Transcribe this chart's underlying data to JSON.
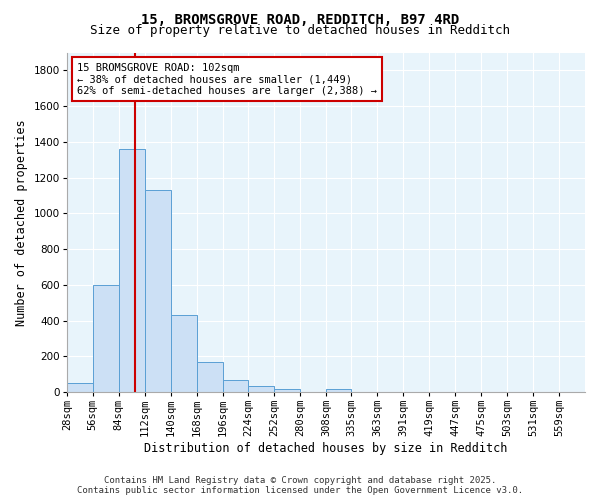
{
  "title": "15, BROMSGROVE ROAD, REDDITCH, B97 4RD",
  "subtitle": "Size of property relative to detached houses in Redditch",
  "xlabel": "Distribution of detached houses by size in Redditch",
  "ylabel": "Number of detached properties",
  "property_size": 102,
  "bin_edges": [
    28,
    56,
    84,
    112,
    140,
    168,
    196,
    224,
    252,
    280,
    308,
    335,
    363,
    391,
    419,
    447,
    475,
    503,
    531,
    559,
    587
  ],
  "bar_heights": [
    50,
    600,
    1360,
    1130,
    430,
    170,
    65,
    35,
    15,
    0,
    15,
    0,
    0,
    0,
    0,
    0,
    0,
    0,
    0,
    0
  ],
  "bar_facecolor": "#cce0f5",
  "bar_edgecolor": "#5a9fd4",
  "vline_color": "#cc0000",
  "annotation_line1": "15 BROMSGROVE ROAD: 102sqm",
  "annotation_line2": "← 38% of detached houses are smaller (1,449)",
  "annotation_line3": "62% of semi-detached houses are larger (2,388) →",
  "annotation_boxcolor": "white",
  "annotation_edgecolor": "#cc0000",
  "ylim": [
    0,
    1900
  ],
  "yticks": [
    0,
    200,
    400,
    600,
    800,
    1000,
    1200,
    1400,
    1600,
    1800
  ],
  "bg_color": "#e8f4fb",
  "grid_color": "white",
  "footer_line1": "Contains HM Land Registry data © Crown copyright and database right 2025.",
  "footer_line2": "Contains public sector information licensed under the Open Government Licence v3.0.",
  "title_fontsize": 10,
  "subtitle_fontsize": 9,
  "axis_label_fontsize": 8.5,
  "tick_fontsize": 7.5,
  "annotation_fontsize": 7.5,
  "footer_fontsize": 6.5
}
